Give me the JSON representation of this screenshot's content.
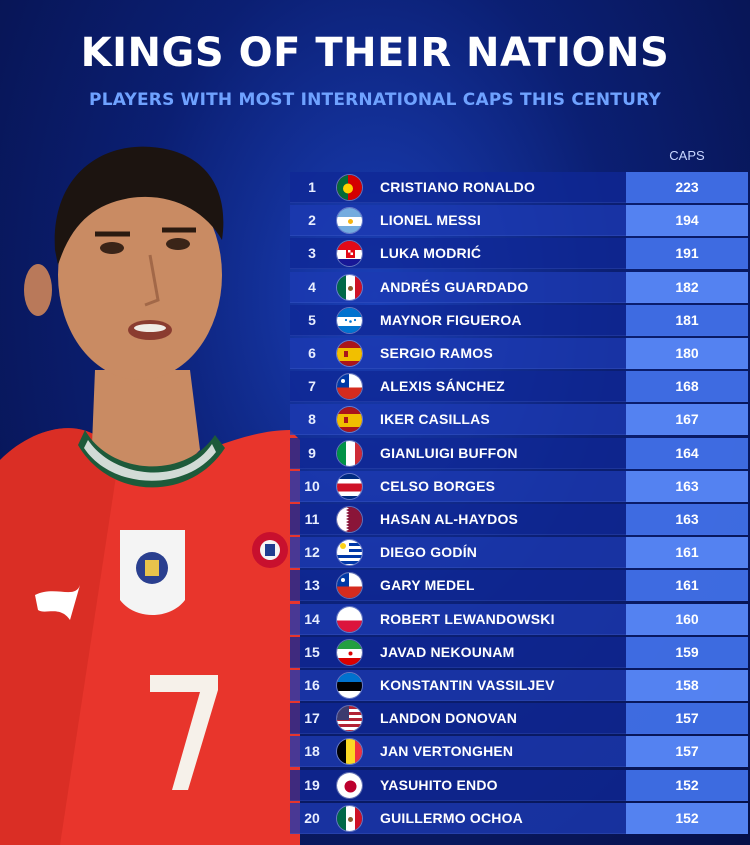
{
  "header": {
    "title": "KINGS OF THEIR NATIONS",
    "subtitle": "PLAYERS WITH MOST INTERNATIONAL CAPS THIS CENTURY"
  },
  "player_image": {
    "shirt_number": "7",
    "colors": {
      "shirt": "#e8352c",
      "collar": "#1d5a3a",
      "skin": "#c98b63",
      "hair": "#1c1410"
    }
  },
  "chart_data": {
    "type": "table",
    "columns": [
      "",
      "",
      "",
      "CAPS"
    ],
    "rows": [
      {
        "rank": "1",
        "flag": "portugal-flag-icon",
        "name": "CRISTIANO RONALDO",
        "caps": 223
      },
      {
        "rank": "2",
        "flag": "argentina-flag-icon",
        "name": "LIONEL MESSI",
        "caps": 194
      },
      {
        "rank": "3",
        "flag": "croatia-flag-icon",
        "name": "LUKA MODRIĆ",
        "caps": 191
      },
      {
        "rank": "4",
        "flag": "mexico-flag-icon",
        "name": "ANDRÉS GUARDADO",
        "caps": 182
      },
      {
        "rank": "5",
        "flag": "honduras-flag-icon",
        "name": "MAYNOR FIGUEROA",
        "caps": 181
      },
      {
        "rank": "6",
        "flag": "spain-flag-icon",
        "name": "SERGIO RAMOS",
        "caps": 180
      },
      {
        "rank": "7",
        "flag": "chile-flag-icon",
        "name": "ALEXIS SÁNCHEZ",
        "caps": 168
      },
      {
        "rank": "8",
        "flag": "spain-flag-icon",
        "name": "IKER CASILLAS",
        "caps": 167
      },
      {
        "rank": "9",
        "flag": "italy-flag-icon",
        "name": "GIANLUIGI BUFFON",
        "caps": 164
      },
      {
        "rank": "10",
        "flag": "costa-rica-flag-icon",
        "name": "CELSO BORGES",
        "caps": 163
      },
      {
        "rank": "11",
        "flag": "qatar-flag-icon",
        "name": "HASAN AL-HAYDOS",
        "caps": 163
      },
      {
        "rank": "12",
        "flag": "uruguay-flag-icon",
        "name": "DIEGO GODÍN",
        "caps": 161
      },
      {
        "rank": "13",
        "flag": "chile-flag-icon",
        "name": "GARY MEDEL",
        "caps": 161
      },
      {
        "rank": "14",
        "flag": "poland-flag-icon",
        "name": "ROBERT LEWANDOWSKI",
        "caps": 160
      },
      {
        "rank": "15",
        "flag": "iran-flag-icon",
        "name": "JAVAD NEKOUNAM",
        "caps": 159
      },
      {
        "rank": "16",
        "flag": "estonia-flag-icon",
        "name": "KONSTANTIN VASSILJEV",
        "caps": 158
      },
      {
        "rank": "17",
        "flag": "usa-flag-icon",
        "name": "LANDON DONOVAN",
        "caps": 157
      },
      {
        "rank": "18",
        "flag": "belgium-flag-icon",
        "name": "JAN VERTONGHEN",
        "caps": 157
      },
      {
        "rank": "19",
        "flag": "japan-flag-icon",
        "name": "YASUHITO ENDO",
        "caps": 152
      },
      {
        "rank": "20",
        "flag": "mexico-flag-icon",
        "name": "GUILLERMO OCHOA",
        "caps": 152
      }
    ]
  },
  "colors": {
    "background": "#0b1f73",
    "subtitle": "#6fa2ff",
    "row": "#10289a",
    "row_alt": "#1c3ab2",
    "caps_cell": "#4678f0"
  }
}
